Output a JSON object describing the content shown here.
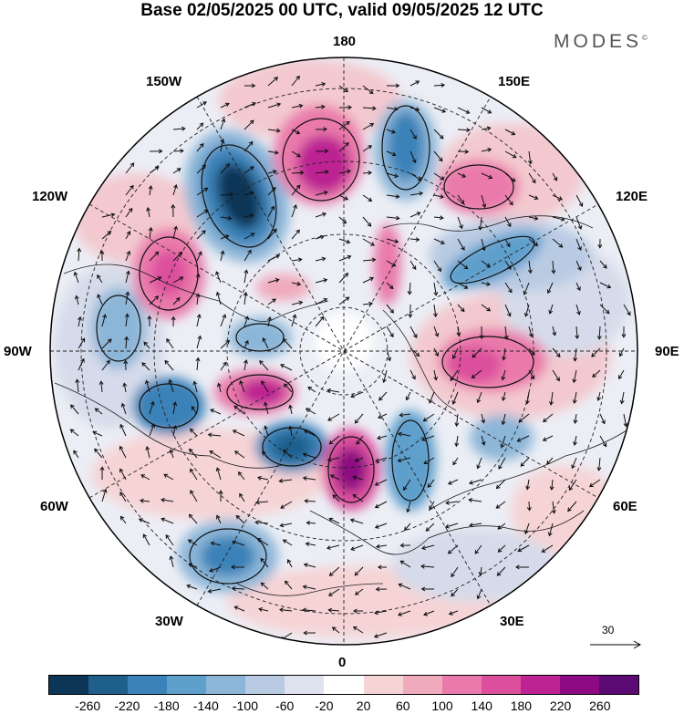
{
  "header": {
    "title": "Base 02/05/2025 00 UTC, valid 09/05/2025 12 UTC",
    "brand": "MODES",
    "brand_mark": "©"
  },
  "map": {
    "projection": "north-polar-stereographic",
    "longitude_labels": {
      "top": "180",
      "bottom": "0",
      "left": "90W",
      "right": "90E",
      "upper_left_1": "150W",
      "upper_left_2": "120W",
      "upper_right_1": "150E",
      "upper_right_2": "120E",
      "lower_left_1": "60W",
      "lower_left_2": "30W",
      "lower_right_1": "60E",
      "lower_right_2": "30E"
    },
    "vector_reference": "30"
  },
  "colorbar": {
    "colors": [
      "#0d3656",
      "#1f5f8c",
      "#3a82b8",
      "#5f9fcc",
      "#8cb6d8",
      "#b9cbe3",
      "#dfe2ef",
      "#ffffff",
      "#f6d4d6",
      "#f0aabd",
      "#ea7aab",
      "#dc4f9d",
      "#bd2393",
      "#8e0a82",
      "#5b0a73"
    ],
    "tick_labels": [
      "-260",
      "-220",
      "-180",
      "-140",
      "-100",
      "-60",
      "-20",
      "20",
      "60",
      "100",
      "140",
      "180",
      "220",
      "260"
    ]
  }
}
